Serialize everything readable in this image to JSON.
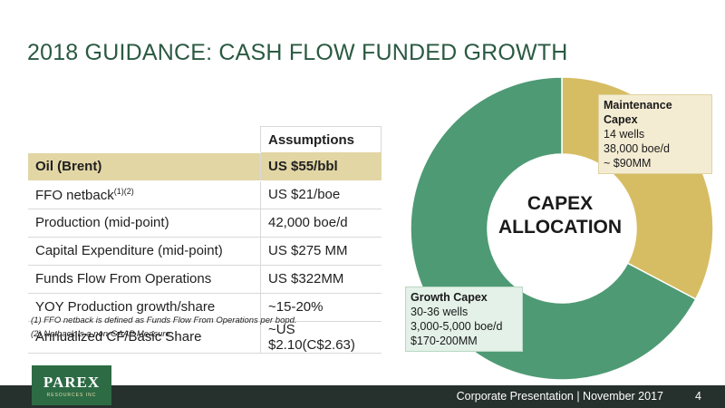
{
  "title": "2018  GUIDANCE: CASH FLOW FUNDED GROWTH",
  "table": {
    "header": "Assumptions",
    "rows": [
      {
        "label": "Oil (Brent)",
        "value": "US $55/bbl"
      },
      {
        "label": "FFO netback",
        "sup": "(1)(2)",
        "value": "US $21/boe"
      },
      {
        "label": "Production (mid-point)",
        "value": "42,000 boe/d"
      },
      {
        "label": "Capital Expenditure (mid-point)",
        "value": "US $275 MM"
      },
      {
        "label": "Funds Flow From Operations",
        "value": "US $322MM"
      },
      {
        "label": "YOY Production growth/share",
        "value": "~15-20%"
      },
      {
        "label": "Annualized CF/Basic Share",
        "value": "~US $2.10(C$2.63)"
      }
    ]
  },
  "footnotes": [
    "(1)  FFO netback is defined as Funds Flow From Operations per bopd.",
    "(2)  Netback is a non-GAAP Measure."
  ],
  "chart_data": {
    "type": "pie",
    "labels": [
      "Maintenance Capex",
      "Growth Capex"
    ],
    "values": [
      90,
      185
    ],
    "colors": [
      "#d6bd63",
      "#4e9a74"
    ],
    "center_label": [
      "CAPEX",
      "ALLOCATION"
    ]
  },
  "callouts": {
    "maintenance": {
      "title": "Maintenance Capex",
      "lines": [
        "14 wells",
        "38,000 boe/d",
        "~ $90MM"
      ]
    },
    "growth": {
      "title": "Growth Capex",
      "lines": [
        "30-36 wells",
        "3,000-5,000 boe/d",
        "$170-200MM"
      ]
    }
  },
  "logo": {
    "mark": "PAREX",
    "sub": "RESOURCES INC"
  },
  "footer": {
    "text": "Corporate Presentation  |  November 2017",
    "page": "4"
  }
}
